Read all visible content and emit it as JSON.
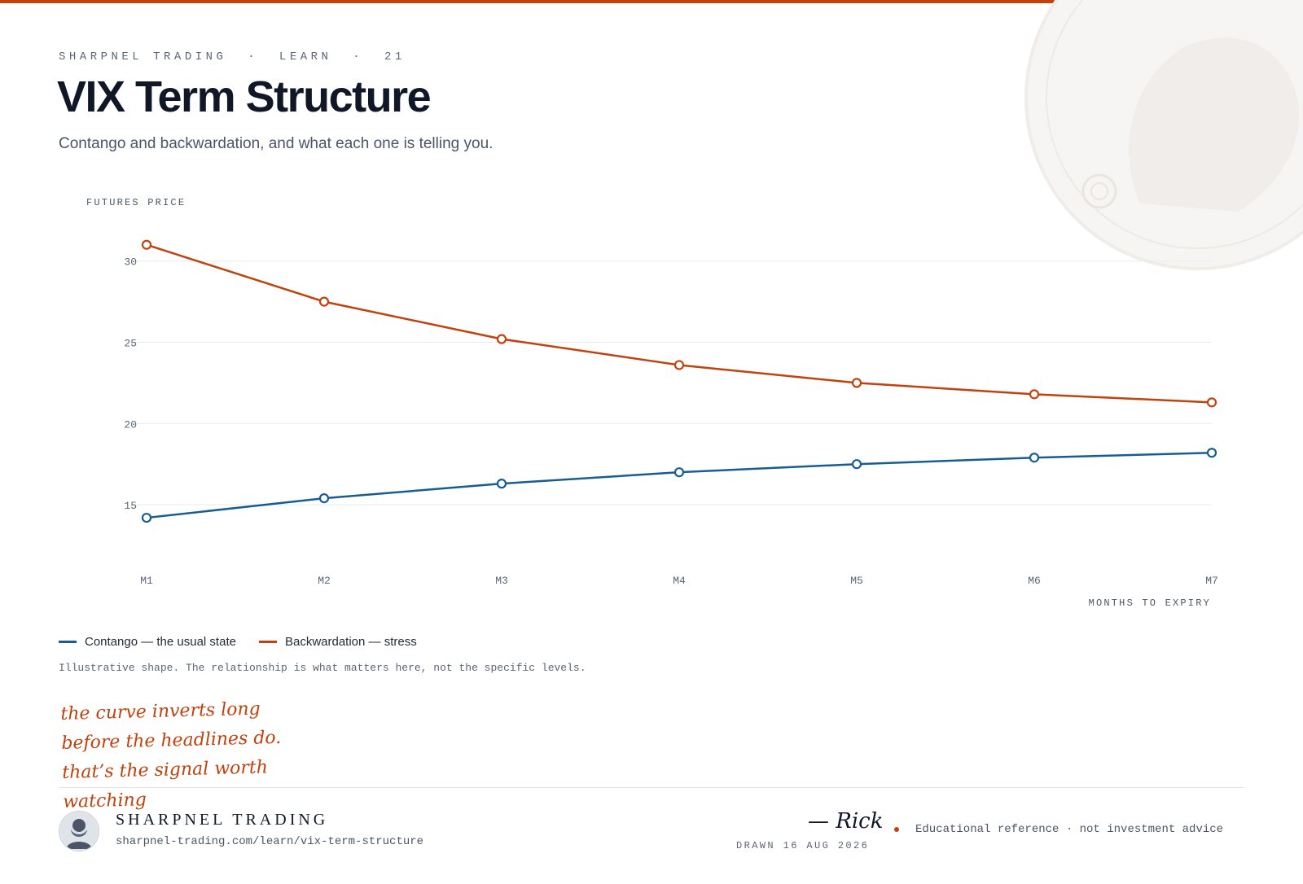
{
  "colors": {
    "accent": "#c2410c",
    "contango": "#175d94",
    "backwardation": "#c2410c",
    "text_primary": "#101828",
    "text_muted": "#5b6577"
  },
  "header": {
    "eyebrow": "SHARPNEL TRADING  ·  LEARN  ·  21",
    "title": "VIX Term Structure",
    "subtitle": "Contango and backwardation, and what each one is telling you."
  },
  "chart_data": {
    "type": "line",
    "ylabel": "FUTURES PRICE",
    "xlabel": "MONTHS TO EXPIRY",
    "categories": [
      "M1",
      "M2",
      "M3",
      "M4",
      "M5",
      "M6",
      "M7"
    ],
    "yticks": [
      15,
      20,
      25,
      30
    ],
    "ylim": [
      12.5,
      32
    ],
    "grid": true,
    "legend_position": "bottom-left",
    "series": [
      {
        "name": "Contango — the usual state",
        "color": "#175d94",
        "values": [
          14.2,
          15.4,
          16.3,
          17.0,
          17.5,
          17.9,
          18.2
        ]
      },
      {
        "name": "Backwardation — stress",
        "color": "#c2410c",
        "values": [
          31.0,
          27.5,
          25.2,
          23.6,
          22.5,
          21.8,
          21.3
        ]
      }
    ]
  },
  "legend": {
    "items": [
      "Contango — the usual state",
      "Backwardation — stress"
    ]
  },
  "footnote": "Illustrative shape. The relationship is what matters here, not the specific levels.",
  "annotation": "the curve inverts long before the headlines do. that’s the signal worth watching",
  "footer": {
    "brand_name": "SHARPNEL TRADING",
    "url": "sharpnel-trading.com/learn/vix-term-structure",
    "signature": "— Rick",
    "drawn_date": "DRAWN 16 AUG 2026",
    "disclaimer": "Educational reference · not investment advice"
  },
  "icons": [
    "bust-avatar-icon",
    "seal-watermark-icon"
  ]
}
